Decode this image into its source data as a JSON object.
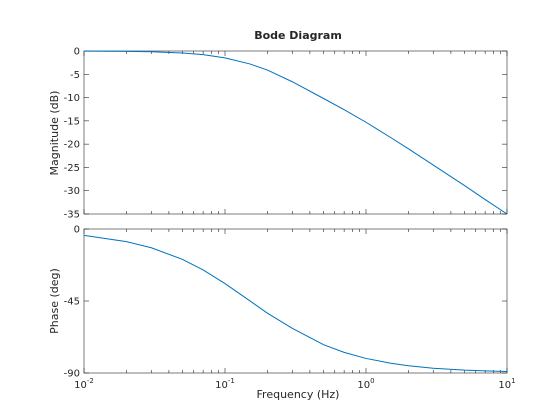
{
  "chart_data": {
    "type": "line",
    "title": "Bode Diagram",
    "xlabel": "Frequency  (Hz)",
    "xscale": "log",
    "xlim": [
      0.01,
      10
    ],
    "x_ticks": [
      {
        "base": "10",
        "exp": "-2"
      },
      {
        "base": "10",
        "exp": "-1"
      },
      {
        "base": "10",
        "exp": "0"
      },
      {
        "base": "10",
        "exp": "1"
      }
    ],
    "color": "#0072BD",
    "grid": false,
    "subplots": [
      {
        "name": "magnitude",
        "ylabel": "Magnitude (dB)",
        "ylim": [
          -35,
          0
        ],
        "yticks": [
          "0",
          "-5",
          "-10",
          "-15",
          "-20",
          "-25",
          "-30",
          "-35"
        ],
        "series": [
          {
            "x": [
              0.01,
              0.02,
              0.03,
              0.05,
              0.07,
              0.1,
              0.15,
              0.2,
              0.3,
              0.5,
              0.7,
              1,
              1.5,
              2,
              3,
              5,
              7,
              10
            ],
            "y": [
              -0.02,
              -0.07,
              -0.16,
              -0.42,
              -0.79,
              -1.48,
              -2.78,
              -4.1,
              -6.6,
              -10.2,
              -12.6,
              -15.3,
              -18.6,
              -21.0,
              -24.5,
              -28.9,
              -31.9,
              -35.0
            ]
          }
        ]
      },
      {
        "name": "phase",
        "ylabel": "Phase (deg)",
        "ylim": [
          -90,
          0
        ],
        "yticks": [
          "0",
          "-45",
          "-90"
        ],
        "series": [
          {
            "x": [
              0.01,
              0.02,
              0.03,
              0.05,
              0.07,
              0.1,
              0.15,
              0.2,
              0.3,
              0.5,
              0.7,
              1,
              1.5,
              2,
              3,
              5,
              7,
              10
            ],
            "y": [
              -4.0,
              -7.9,
              -11.7,
              -19.0,
              -25.6,
              -34.1,
              -44.9,
              -52.6,
              -62.1,
              -72.3,
              -77.1,
              -80.9,
              -83.9,
              -85.5,
              -87.0,
              -88.2,
              -88.7,
              -89.1
            ]
          }
        ]
      }
    ]
  }
}
